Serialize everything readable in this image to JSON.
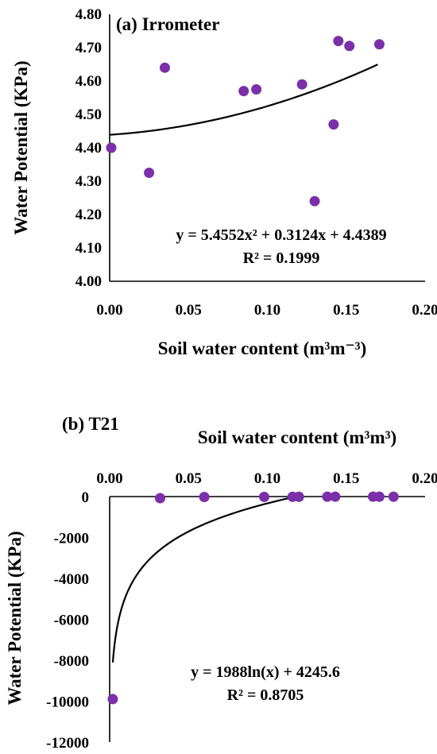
{
  "chart_data": [
    {
      "type": "scatter",
      "title": "(a) Irrometer",
      "xlabel": "Soil water content (m³m⁻³)",
      "ylabel": "Water Potential (KPa)",
      "xlim": [
        0.0,
        0.2
      ],
      "ylim": [
        4.0,
        4.8
      ],
      "xticks": [
        "0.00",
        "0.05",
        "0.10",
        "0.15",
        "0.20"
      ],
      "yticks": [
        "4.00",
        "4.10",
        "4.20",
        "4.30",
        "4.40",
        "4.50",
        "4.60",
        "4.70",
        "4.80"
      ],
      "points": [
        {
          "x": 0.001,
          "y": 4.4
        },
        {
          "x": 0.025,
          "y": 4.325
        },
        {
          "x": 0.035,
          "y": 4.64
        },
        {
          "x": 0.085,
          "y": 4.57
        },
        {
          "x": 0.093,
          "y": 4.575
        },
        {
          "x": 0.122,
          "y": 4.59
        },
        {
          "x": 0.13,
          "y": 4.24
        },
        {
          "x": 0.142,
          "y": 4.47
        },
        {
          "x": 0.145,
          "y": 4.72
        },
        {
          "x": 0.152,
          "y": 4.705
        },
        {
          "x": 0.171,
          "y": 4.71
        }
      ],
      "trendline": {
        "kind": "poly2",
        "a": 5.4552,
        "b": 0.3124,
        "c": 4.4389,
        "xrange": [
          0.0,
          0.17
        ]
      },
      "equation": "y = 5.4552x² + 0.3124x + 4.4389",
      "r2": "R² = 0.1999",
      "grid": false
    },
    {
      "type": "scatter",
      "title": "(b)  T21",
      "xlabel": "Soil water content (m³m³)",
      "ylabel": "Water Potential (KPa)",
      "xlim": [
        0.0,
        0.2
      ],
      "ylim": [
        -12000,
        0
      ],
      "xticks": [
        "0.00",
        "0.05",
        "0.10",
        "0.15",
        "0.20"
      ],
      "yticks": [
        "0",
        "-2000",
        "-4000",
        "-6000",
        "-8000",
        "-10000",
        "-12000"
      ],
      "points": [
        {
          "x": 0.002,
          "y": -9900
        },
        {
          "x": 0.032,
          "y": -80
        },
        {
          "x": 0.06,
          "y": -20
        },
        {
          "x": 0.098,
          "y": -15
        },
        {
          "x": 0.116,
          "y": -10
        },
        {
          "x": 0.12,
          "y": -10
        },
        {
          "x": 0.138,
          "y": -5
        },
        {
          "x": 0.143,
          "y": -5
        },
        {
          "x": 0.167,
          "y": -5
        },
        {
          "x": 0.171,
          "y": -5
        },
        {
          "x": 0.18,
          "y": -5
        }
      ],
      "trendline": {
        "kind": "log",
        "a": 1988,
        "b": 4245.6,
        "xrange": [
          0.002,
          0.118
        ]
      },
      "equation": "y = 1988ln(x) + 4245.6",
      "r2": "R² = 0.8705",
      "grid": false
    }
  ]
}
